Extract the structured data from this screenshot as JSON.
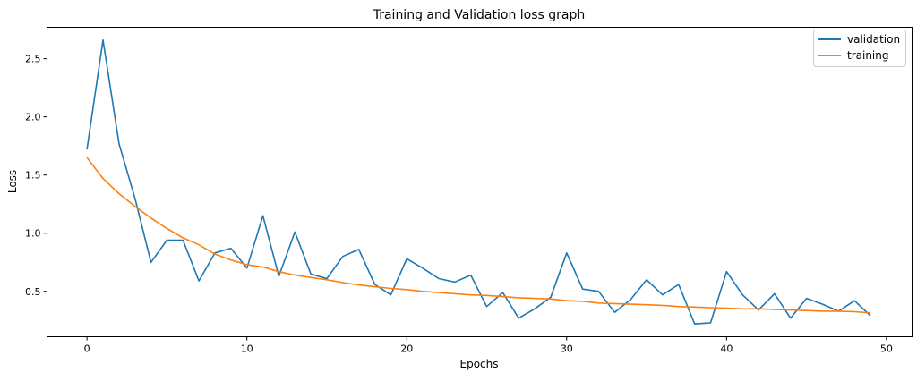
{
  "chart_data": {
    "type": "line",
    "title": "Training and Validation loss graph",
    "xlabel": "Epochs",
    "ylabel": "Loss",
    "xlim": [
      -2.5,
      51.6
    ],
    "ylim": [
      0.11,
      2.77
    ],
    "xticks": [
      0,
      10,
      20,
      30,
      40,
      50
    ],
    "xtick_labels": [
      "0",
      "10",
      "20",
      "30",
      "40",
      "50"
    ],
    "yticks": [
      0.5,
      1.0,
      1.5,
      2.0,
      2.5
    ],
    "ytick_labels": [
      "0.5",
      "1.0",
      "1.5",
      "2.0",
      "2.5"
    ],
    "grid": false,
    "legend_position": "top-right",
    "x": [
      0,
      1,
      2,
      3,
      4,
      5,
      6,
      7,
      8,
      9,
      10,
      11,
      12,
      13,
      14,
      15,
      16,
      17,
      18,
      19,
      20,
      21,
      22,
      23,
      24,
      25,
      26,
      27,
      28,
      29,
      30,
      31,
      32,
      33,
      34,
      35,
      36,
      37,
      38,
      39,
      40,
      41,
      42,
      43,
      44,
      45,
      46,
      47,
      48,
      49
    ],
    "series": [
      {
        "name": "validation",
        "color": "#1f77b4",
        "values": [
          1.72,
          2.66,
          1.77,
          1.3,
          0.75,
          0.94,
          0.94,
          0.59,
          0.83,
          0.87,
          0.7,
          1.15,
          0.63,
          1.01,
          0.65,
          0.61,
          0.8,
          0.86,
          0.56,
          0.47,
          0.78,
          0.7,
          0.61,
          0.58,
          0.64,
          0.37,
          0.49,
          0.27,
          0.35,
          0.45,
          0.83,
          0.52,
          0.5,
          0.32,
          0.43,
          0.6,
          0.47,
          0.56,
          0.22,
          0.23,
          0.67,
          0.47,
          0.34,
          0.48,
          0.27,
          0.44,
          0.39,
          0.33,
          0.42,
          0.29
        ]
      },
      {
        "name": "training",
        "color": "#ff7f0e",
        "values": [
          1.65,
          1.47,
          1.34,
          1.23,
          1.13,
          1.04,
          0.96,
          0.9,
          0.82,
          0.77,
          0.73,
          0.71,
          0.67,
          0.64,
          0.62,
          0.6,
          0.575,
          0.555,
          0.54,
          0.525,
          0.515,
          0.5,
          0.49,
          0.48,
          0.47,
          0.465,
          0.455,
          0.445,
          0.44,
          0.435,
          0.42,
          0.415,
          0.4,
          0.395,
          0.39,
          0.385,
          0.38,
          0.37,
          0.365,
          0.36,
          0.355,
          0.35,
          0.35,
          0.345,
          0.34,
          0.335,
          0.33,
          0.33,
          0.325,
          0.315
        ]
      }
    ]
  }
}
